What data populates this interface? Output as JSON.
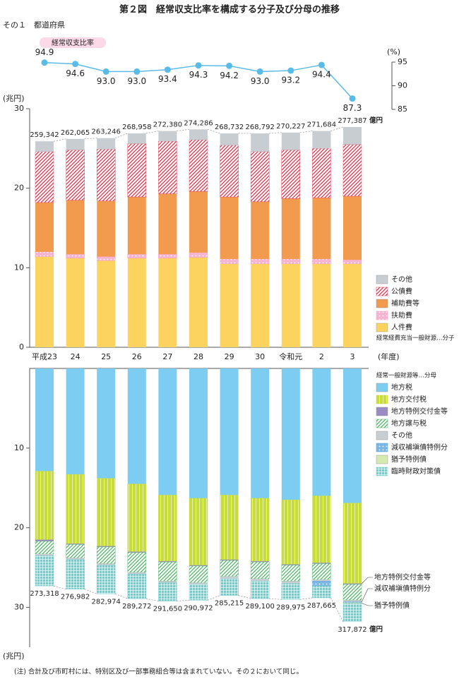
{
  "title": "第２図　経常収支比率を構成する分子及び分母の推移",
  "subtitle": "その１　都道府県",
  "note": "(注) 合計及び市町村には、特別区及び一部事務組合等は含まれていない。その２において同じ。",
  "chart_data": [
    {
      "type": "line",
      "legend": "経常収支比率",
      "y_unit": "(%)",
      "color": "#5bbbe8",
      "values": [
        94.9,
        94.6,
        93.0,
        93.0,
        93.4,
        94.3,
        94.2,
        93.0,
        93.2,
        94.4,
        87.3
      ],
      "value_labels": [
        "94.9",
        "94.6",
        "93.0",
        "93.0",
        "93.4",
        "94.3",
        "94.2",
        "93.0",
        "93.2",
        "94.4",
        "87.3"
      ],
      "ylim": [
        85,
        95
      ],
      "yticks": [
        85,
        90,
        95
      ]
    },
    {
      "type": "stacked_bar",
      "y_unit": "(兆円)",
      "x_unit": "(年度)",
      "categories": [
        "平成23",
        "24",
        "25",
        "26",
        "27",
        "28",
        "29",
        "30",
        "令和元",
        "2",
        "3"
      ],
      "ylim": [
        0,
        30
      ],
      "yticks": [
        0,
        10,
        20,
        30
      ],
      "legend_note": "経常経費充当一般財源…分子",
      "series": [
        {
          "name": "人件費",
          "color": "#fdd35f",
          "pattern": "solid",
          "values": [
            11.4,
            11.2,
            10.9,
            11.2,
            11.2,
            11.3,
            10.5,
            10.5,
            10.5,
            10.5,
            10.5
          ]
        },
        {
          "name": "扶助費",
          "color": "#f49ac1",
          "pattern": "dots",
          "values": [
            0.6,
            0.5,
            0.5,
            0.5,
            0.5,
            0.6,
            0.6,
            0.6,
            0.6,
            0.6,
            0.5
          ]
        },
        {
          "name": "補助費等",
          "color": "#f29a4e",
          "pattern": "solid",
          "values": [
            6.2,
            6.8,
            7.0,
            7.2,
            7.6,
            7.7,
            7.8,
            7.2,
            7.6,
            7.7,
            8.0
          ]
        },
        {
          "name": "公債費",
          "color": "#e0314b",
          "pattern": "hatch",
          "values": [
            6.4,
            6.3,
            6.5,
            6.7,
            6.6,
            6.5,
            6.5,
            6.3,
            6.1,
            6.2,
            6.5
          ]
        },
        {
          "name": "その他",
          "color": "#c8cdd1",
          "pattern": "solid",
          "values": [
            1.3,
            1.4,
            1.4,
            1.3,
            1.3,
            1.3,
            1.5,
            2.3,
            2.2,
            2.2,
            2.2
          ]
        }
      ],
      "totals": {
        "unit": "億円",
        "values": [
          259342,
          262065,
          263246,
          268958,
          272380,
          274286,
          268732,
          268792,
          270227,
          271684,
          277387
        ],
        "value_labels": [
          "259,342",
          "262,065",
          "263,246",
          "268,958",
          "272,380",
          "274,286",
          "268,732",
          "268,792",
          "270,227",
          "271,684",
          "277,387"
        ]
      }
    },
    {
      "type": "stacked_bar",
      "direction": "down",
      "y_unit": "(兆円)",
      "ylim": [
        0,
        35
      ],
      "yticks": [
        10,
        20,
        30
      ],
      "legend_title": "経常一般財源等…分母",
      "series": [
        {
          "name": "地方税",
          "color": "#7ccdf1",
          "pattern": "solid",
          "values": [
            12.9,
            13.3,
            13.8,
            14.5,
            15.9,
            16.3,
            15.9,
            16.3,
            16.5,
            16.0,
            16.9
          ]
        },
        {
          "name": "地方交付税",
          "color": "#c8dc3a",
          "pattern": "vlines",
          "values": [
            8.6,
            8.7,
            8.5,
            8.5,
            8.3,
            8.4,
            8.1,
            7.9,
            8.1,
            8.4,
            10.1
          ]
        },
        {
          "name": "地方特例交付金等",
          "color": "#9a8bc4",
          "pattern": "solid",
          "values": [
            0.2,
            0.1,
            0.1,
            0.1,
            0.1,
            0.1,
            0.1,
            0.1,
            0.1,
            0.1,
            0.1
          ]
        },
        {
          "name": "地方譲与税",
          "color": "#4fb466",
          "pattern": "hatch",
          "values": [
            1.6,
            1.7,
            2.1,
            2.5,
            2.4,
            2.1,
            2.0,
            2.1,
            2.0,
            2.0,
            2.0
          ]
        },
        {
          "name": "その他",
          "color": "#c8cdd1",
          "pattern": "solid",
          "values": [
            0.2,
            0.2,
            0.2,
            0.2,
            0.2,
            0.2,
            0.3,
            0.3,
            0.3,
            0.2,
            0.2
          ]
        },
        {
          "name": "減収補塡債特例分",
          "color": "#4f9fdc",
          "pattern": "dots",
          "values": [
            0,
            0,
            0,
            0,
            0,
            0,
            0,
            0,
            0,
            0.6,
            0.1
          ]
        },
        {
          "name": "猶予特例債",
          "color": "#d6e9b0",
          "pattern": "solid",
          "values": [
            0,
            0,
            0,
            0,
            0,
            0,
            0,
            0,
            0,
            0,
            0.1
          ]
        },
        {
          "name": "臨時財政対策債",
          "color": "#6fcfcf",
          "pattern": "grid",
          "values": [
            3.8,
            3.7,
            3.6,
            3.1,
            2.3,
            2.0,
            2.1,
            2.2,
            2.0,
            1.5,
            2.3
          ]
        }
      ],
      "totals": {
        "unit": "億円",
        "values": [
          273318,
          276982,
          282974,
          289272,
          291650,
          290972,
          285215,
          289100,
          289975,
          287665,
          317872
        ],
        "value_labels": [
          "273,318",
          "276,982",
          "282,974",
          "289,272",
          "291,650",
          "290,972",
          "285,215",
          "289,100",
          "289,975",
          "287,665",
          "317,872"
        ]
      },
      "annotations": [
        "地方特例交付金等",
        "減収補塡債特例分",
        "猶予特例債"
      ]
    }
  ]
}
